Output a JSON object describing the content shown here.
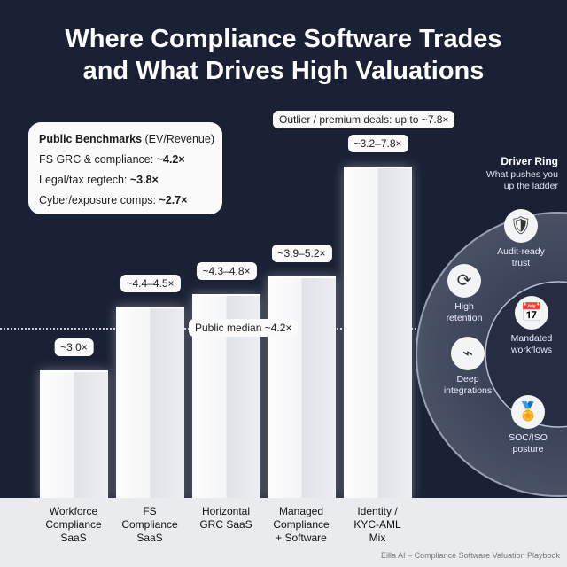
{
  "title_line1": "Where Compliance Software Trades",
  "title_line2": "and What Drives High Valuations",
  "benchmarks": {
    "heading_bold": "Public Benchmarks",
    "heading_rest": " (EV/Revenue)",
    "rows": [
      {
        "label": "FS GRC & compliance: ",
        "value": "~4.2×"
      },
      {
        "label": "Legal/tax regtech: ",
        "value": "~3.8×"
      },
      {
        "label": "Cyber/exposure comps: ",
        "value": "~2.7×"
      }
    ]
  },
  "outlier_label": "Outlier / premium deals: up to ~7.8×",
  "median_label": "Public median ~4.2×",
  "chart_data": {
    "type": "bar",
    "categories": [
      "Workforce Compliance SaaS",
      "FS Compliance SaaS",
      "Horizontal GRC SaaS",
      "Managed Compliance + Software",
      "Identity / KYC-AML Mix"
    ],
    "ranges": [
      [
        3.0,
        3.0
      ],
      [
        4.4,
        4.5
      ],
      [
        4.3,
        4.8
      ],
      [
        3.9,
        5.2
      ],
      [
        3.2,
        7.8
      ]
    ],
    "values": [
      3.0,
      4.5,
      4.8,
      5.2,
      7.8
    ],
    "data_labels": [
      "~3.0×",
      "~4.4–4.5×",
      "~4.3–4.8×",
      "~3.9–5.2×",
      "~3.2–7.8×"
    ],
    "reference_line": {
      "value": 4.2,
      "label": "Public median ~4.2×"
    },
    "ylabel": "EV/Revenue",
    "grid": false
  },
  "category_lines": [
    [
      "Workforce",
      "Compliance",
      "SaaS"
    ],
    [
      "FS",
      "Compliance",
      "SaaS"
    ],
    [
      "Horizontal",
      "GRC SaaS"
    ],
    [
      "Managed",
      "Compliance",
      "+ Software"
    ],
    [
      "Identity /",
      "KYC-AML",
      "Mix"
    ]
  ],
  "driver_ring": {
    "title": "Driver Ring",
    "subtitle_1": "What pushes you",
    "subtitle_2": "up the ladder",
    "items": [
      {
        "l1": "Audit-ready",
        "l2": "trust",
        "icon": "shield-check"
      },
      {
        "l1": "High",
        "l2": "retention",
        "icon": "refresh"
      },
      {
        "l1": "Mandated",
        "l2": "workflows",
        "icon": "calendar-clock"
      },
      {
        "l1": "Deep",
        "l2": "integrations",
        "icon": "plug-network"
      },
      {
        "l1": "SOC/ISO",
        "l2": "posture",
        "icon": "award-badge"
      }
    ]
  },
  "footer": "Eilla AI – Compliance Software Valuation Playbook",
  "colors": {
    "background": "#1a2135",
    "bar": "#f4f5f7",
    "bottom_band": "#e9ebef"
  }
}
